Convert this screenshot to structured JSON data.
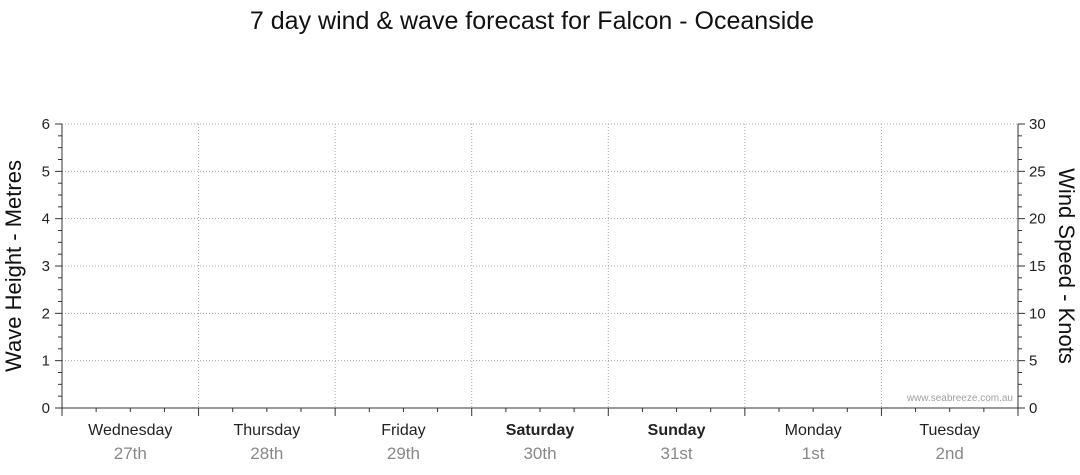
{
  "chart_data": {
    "type": "line",
    "title": "7 day wind & wave forecast for Falcon - Oceanside",
    "ylabel": "Wave Height - Metres",
    "y2label": "Wind Speed - Knots",
    "ylim": [
      0,
      6
    ],
    "y2lim": [
      0,
      30
    ],
    "yticks": [
      "0",
      "1",
      "2",
      "3",
      "4",
      "5",
      "6"
    ],
    "y2ticks": [
      "0",
      "5",
      "10",
      "15",
      "20",
      "25",
      "30"
    ],
    "categories": [
      {
        "day": "Wednesday",
        "date": "27th",
        "weekend": false
      },
      {
        "day": "Thursday",
        "date": "28th",
        "weekend": false
      },
      {
        "day": "Friday",
        "date": "29th",
        "weekend": false
      },
      {
        "day": "Saturday",
        "date": "30th",
        "weekend": true
      },
      {
        "day": "Sunday",
        "date": "31st",
        "weekend": true
      },
      {
        "day": "Monday",
        "date": "1st",
        "weekend": false
      },
      {
        "day": "Tuesday",
        "date": "2nd",
        "weekend": false
      }
    ],
    "series": [],
    "grid": true,
    "watermark": "www.seabreeze.com.au"
  }
}
